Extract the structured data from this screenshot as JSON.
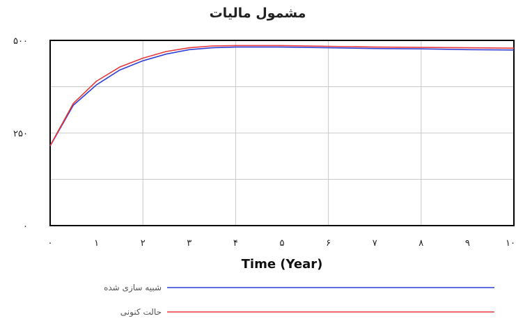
{
  "chart_data": {
    "type": "line",
    "title": "مشمول مالیات",
    "xlabel": "Time (Year)",
    "ylabel": "",
    "xlim": [
      0,
      10
    ],
    "ylim": [
      0,
      500
    ],
    "x_ticks": [
      0,
      1,
      2,
      3,
      4,
      5,
      6,
      7,
      8,
      9,
      10
    ],
    "x_tick_labels": [
      "۰",
      "۱",
      "۲",
      "۳",
      "۴",
      "۵",
      "۶",
      "۷",
      "۸",
      "۹",
      "۱۰"
    ],
    "y_ticks": [
      0,
      250,
      500
    ],
    "y_tick_labels": [
      "۰",
      "۲۵۰",
      "۵۰۰"
    ],
    "grid": true,
    "legend_position": "bottom",
    "series": [
      {
        "name": "شبیه سازی شده",
        "color": "#2f3fd6",
        "x": [
          0,
          0.5,
          1,
          1.5,
          2,
          2.5,
          3,
          3.5,
          4,
          5,
          6,
          7,
          8,
          9,
          10
        ],
        "y": [
          215,
          325,
          380,
          420,
          445,
          463,
          475,
          480,
          482,
          482,
          480,
          478,
          477,
          475,
          474
        ]
      },
      {
        "name": "حالت کنونی",
        "color": "#e8383b",
        "x": [
          0,
          0.5,
          1,
          1.5,
          2,
          2.5,
          3,
          3.5,
          4,
          5,
          6,
          7,
          8,
          9,
          10
        ],
        "y": [
          216,
          330,
          390,
          428,
          452,
          470,
          480,
          485,
          486,
          486,
          484,
          482,
          481,
          480,
          479
        ]
      }
    ]
  }
}
